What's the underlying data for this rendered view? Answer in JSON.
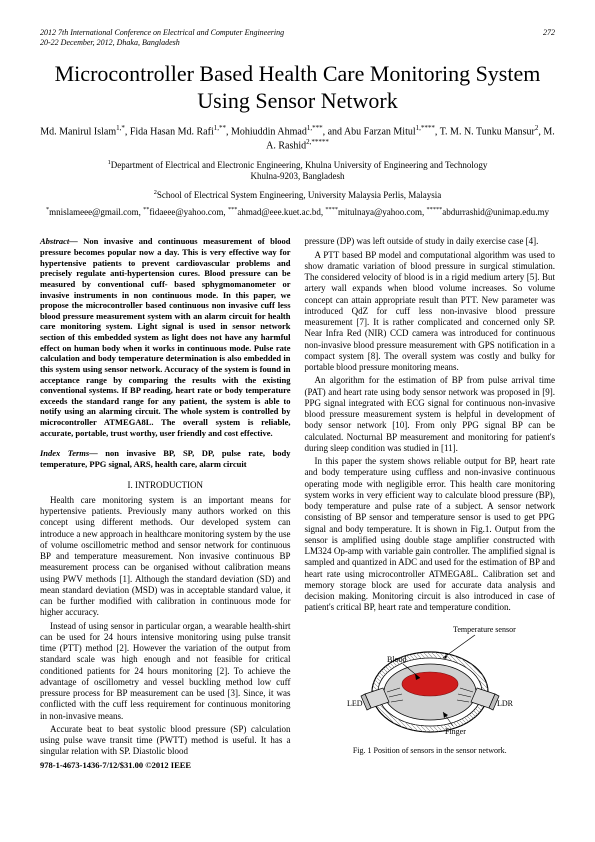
{
  "header": {
    "conference_line1": "2012 7th International Conference on Electrical and Computer Engineering",
    "conference_line2": "20-22 December, 2012, Dhaka, Bangladesh",
    "page_number": "272"
  },
  "title": "Microcontroller Based Health Care Monitoring System Using Sensor Network",
  "authors_html": "Md. Manirul Islam<sup>1,*</sup>, Fida Hasan Md. Rafi<sup>1,**</sup>, Mohiuddin Ahmad<sup>1,***</sup>, and Abu Farzan Mitul<sup>1,****</sup>, T. M. N. Tunku Mansur<sup>2</sup>, M. A. Rashid<sup>2,*****</sup>",
  "affiliations": {
    "a1": "<sup>1</sup>Department of Electrical and Electronic Engineering, Khulna University of Engineering and Technology",
    "a1b": "Khulna-9203, Bangladesh",
    "a2": "<sup>2</sup>School of Electrical System Engineering, University Malaysia Perlis, Malaysia"
  },
  "emails_html": "<sup>*</sup>mnislameee@gmail.com, <sup>**</sup>fidaeee@yahoo.com, <sup>***</sup>ahmad@eee.kuet.ac.bd, <sup>****</sup>mitulnaya@yahoo.com, <sup>*****</sup>abdurrashid@unimap.edu.my",
  "abstract_label": "Abstract—",
  "abstract_text": " Non invasive and continuous measurement of blood pressure becomes popular now a day. This is very effective way for hypertensive patients to prevent cardiovascular problems and precisely regulate anti-hypertension cures. Blood pressure can be measured by conventional cuff- based sphygmomanometer or invasive instruments in non continuous mode. In this paper, we propose the microcontroller based continuous non invasive cuff less blood pressure measurement system with an alarm circuit for health care monitoring system. Light signal is used in sensor network section of this embedded system as light does not have any harmful effect on human body when it works in continuous mode. Pulse rate calculation and body temperature determination is also embedded in this system using sensor network. Accuracy of the system is found in acceptance range by comparing the results with the existing conventional systems. If BP reading, heart rate or body temperature exceeds the standard range for any patient, the system is able to notify using an alarming circuit. The whole system is controlled by microcontroller ATMEGA8L. The overall system is reliable, accurate, portable, trust worthy, user friendly and cost effective.",
  "index_terms_label": "Index Terms—",
  "index_terms_text": " non invasive BP, SP, DP, pulse rate, body temperature, PPG signal, ARS, health care, alarm circuit",
  "section1_heading": "I.    INTRODUCTION",
  "left_paras": {
    "p1": "Health care monitoring system is an important means for hypertensive patients. Previously many authors worked on this concept using different methods. Our developed system can introduce a new approach in healthcare monitoring system by the use of volume oscillometric method and sensor network for continuous BP and temperature measurement. Non invasive continuous BP measurement process can be organised without calibration means using PWV methods [1]. Although the standard deviation (SD) and mean standard deviation (MSD) was in acceptable standard value, it can be further modified with calibration in continuous mode for higher accuracy.",
    "p2": "Instead of using sensor in particular organ, a wearable health-shirt can be used for 24 hours intensive monitoring using pulse transit time (PTT) method [2]. However the variation of the output from standard scale was high enough and not feasible for critical conditioned patients for 24 hours monitoring [2]. To achieve the advantage of oscillometry and vessel buckling method low cuff pressure process for BP measurement can be used [3]. Since, it was conflicted with the cuff less requirement for continuous monitoring in non-invasive means.",
    "p3": "Accurate beat to beat systolic blood pressure (SP) calculation using pulse wave transit time (PWTT) method is useful. It has a singular relation with SP. Diastolic blood"
  },
  "copyright": "978-1-4673-1436-7/12/$31.00 ©2012 IEEE",
  "right_paras": {
    "r0": "pressure (DP) was left outside of study in daily exercise case [4].",
    "r1": "A PTT based BP model and computational algorithm was used to show dramatic variation of blood pressure in surgical stimulation. The considered velocity of blood is in a rigid medium artery [5]. But artery wall expands when blood volume increases. So volume concept can attain appropriate result than PTT. New parameter was introduced QdZ for cuff less non-invasive blood pressure measurement [7]. It is rather complicated and concerned only SP. Near Infra Red (NIR) CCD camera was introduced for continuous non-invasive blood pressure measurement with GPS notification in a compact system [8]. The overall system was costly and bulky for portable blood pressure monitoring means.",
    "r2": "An algorithm for the estimation of BP from pulse arrival time (PAT) and heart rate using body sensor network was proposed in [9]. PPG signal integrated with ECG signal for continuous non-invasive blood pressure measurement system is helpful in development of body sensor network [10]. From only PPG signal BP can be calculated. Nocturnal BP measurement and monitoring for patient's during sleep condition was studied in [11].",
    "r3": "In this paper the system shows reliable output for BP, heart rate and body temperature using cuffless and non-invasive continuous operating mode with negligible error. This health care monitoring system works in very efficient way to calculate blood pressure (BP), body temperature and pulse rate of a subject. A sensor network consisting of BP sensor and temperature sensor is used to get PPG signal and body temperature. It is shown in Fig.1. Output from the sensor is amplified using double stage amplifier constructed with LM324 Op-amp with variable gain controller. The amplified signal is sampled and quantized in ADC and used for the estimation of BP and heart rate using microcontroller ATMEGA8L. Calibration set and memory storage block are used for accurate data analysis and decision making. Monitoring circuit is also introduced in case of patient's critical BP, heart rate and temperature condition."
  },
  "figure": {
    "labels": {
      "temp_sensor": "Temperature sensor",
      "blood": "Blood",
      "led": "LED",
      "ldr": "LDR",
      "finger": "Finger"
    },
    "caption": "Fig. 1 Position of sensors in the sensor network.",
    "colors": {
      "blood": "#d01c1c",
      "finger": "#c0c0c0",
      "outline": "#000000",
      "led_surface": "#cccccc",
      "pattern": "#888888"
    }
  }
}
